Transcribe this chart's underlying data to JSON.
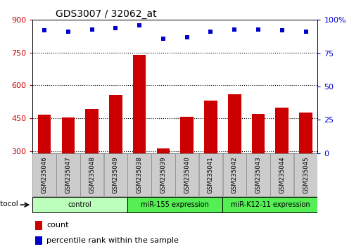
{
  "title": "GDS3007 / 32062_at",
  "samples": [
    "GSM235046",
    "GSM235047",
    "GSM235048",
    "GSM235049",
    "GSM235038",
    "GSM235039",
    "GSM235040",
    "GSM235041",
    "GSM235042",
    "GSM235043",
    "GSM235044",
    "GSM235045"
  ],
  "bar_values": [
    465,
    453,
    493,
    555,
    740,
    312,
    455,
    530,
    560,
    470,
    500,
    475
  ],
  "percentile_values": [
    92,
    91,
    93,
    94,
    96,
    86,
    87,
    91,
    93,
    93,
    92,
    91
  ],
  "bar_color": "#cc0000",
  "dot_color": "#0000cc",
  "ylim_left": [
    290,
    900
  ],
  "ylim_right": [
    0,
    100
  ],
  "yticks_left": [
    300,
    450,
    600,
    750,
    900
  ],
  "yticks_right": [
    0,
    25,
    50,
    75,
    100
  ],
  "groups": [
    {
      "label": "control",
      "start": 0,
      "end": 4,
      "color": "#bbffbb"
    },
    {
      "label": "miR-155 expression",
      "start": 4,
      "end": 8,
      "color": "#55ee55"
    },
    {
      "label": "miR-K12-11 expression",
      "start": 8,
      "end": 12,
      "color": "#55ee55"
    }
  ],
  "protocol_label": "protocol",
  "bar_width": 0.55,
  "gridline_color": "#000000",
  "tick_label_color_left": "#cc0000",
  "tick_label_color_right": "#0000cc",
  "label_box_color": "#cccccc"
}
